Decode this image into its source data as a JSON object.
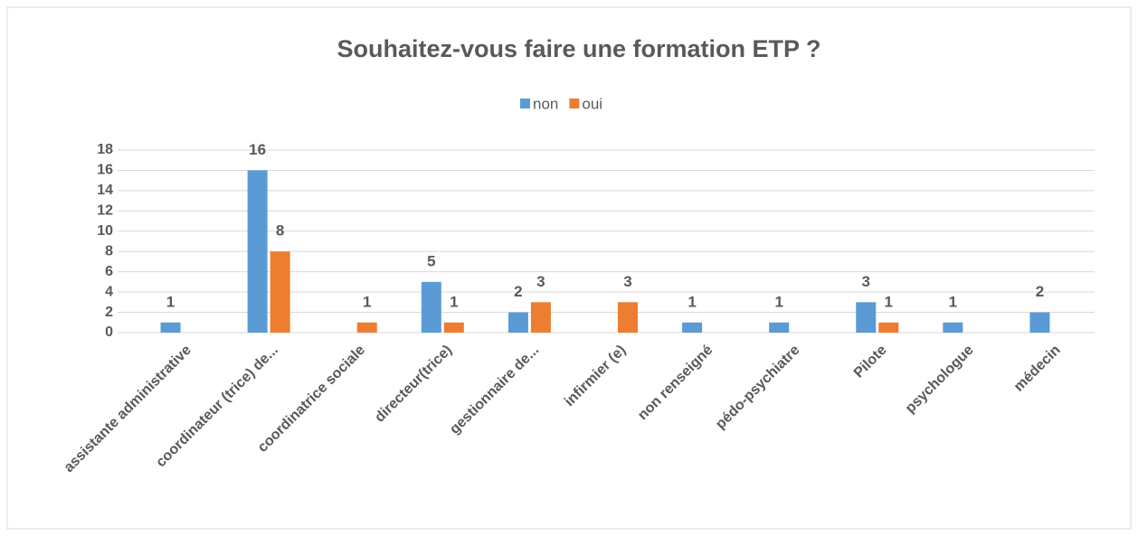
{
  "chart_data": {
    "type": "bar",
    "title": "Souhaitez-vous faire une formation ETP ?",
    "categories": [
      "assistante administrative",
      "coordinateur (trice) de...",
      "coordinatrice sociale",
      "directeur(trice)",
      "gestionnaire de...",
      "infirmier (e)",
      "non renseigné",
      "pédo-psychiatre",
      "Pilote",
      "psychologue",
      "médecin"
    ],
    "series": [
      {
        "name": "non",
        "color": "#5b9bd5",
        "values": [
          1,
          16,
          null,
          5,
          2,
          null,
          1,
          1,
          3,
          1,
          2
        ]
      },
      {
        "name": "oui",
        "color": "#ed7d31",
        "values": [
          null,
          8,
          1,
          1,
          3,
          3,
          null,
          null,
          1,
          null,
          null
        ]
      }
    ],
    "ylim": [
      0,
      18
    ],
    "yticks": [
      0,
      2,
      4,
      6,
      8,
      10,
      12,
      14,
      16,
      18
    ],
    "grid": true,
    "legend": "top"
  }
}
